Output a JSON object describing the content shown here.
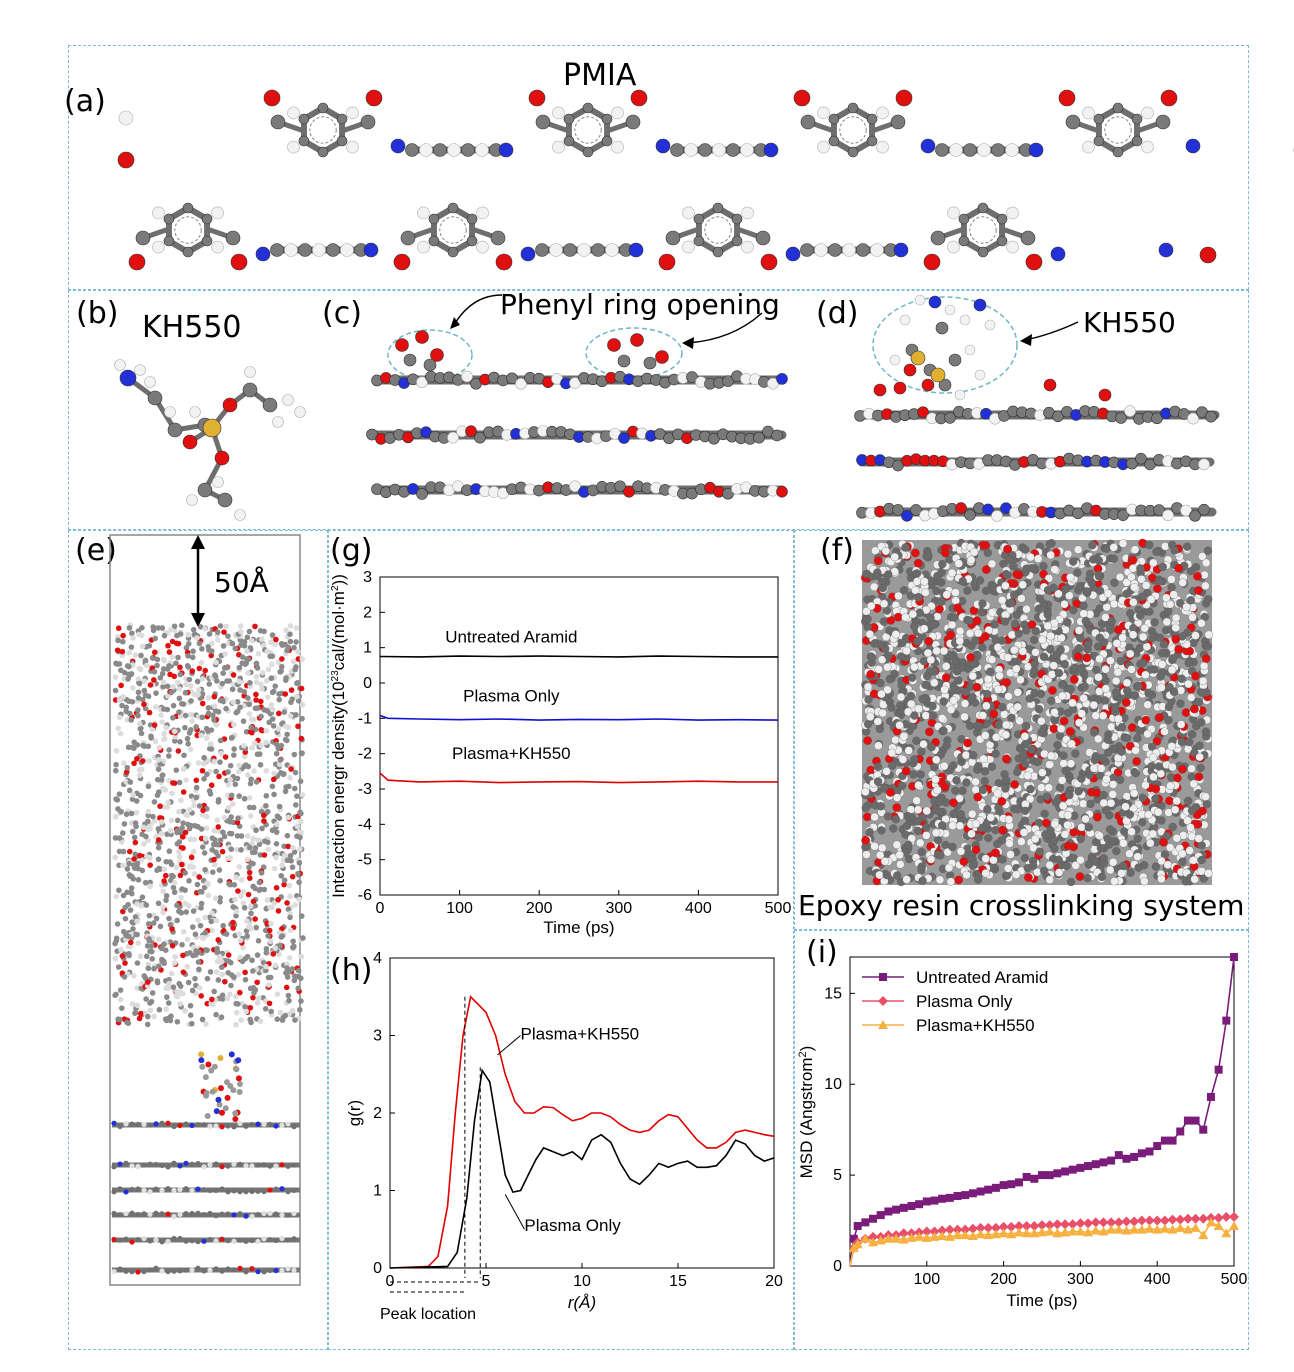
{
  "panels": {
    "a": {
      "label": "(a)",
      "title": "PMIA"
    },
    "b": {
      "label": "(b)",
      "title": "KH550"
    },
    "c": {
      "label": "(c)",
      "annotation": "Phenyl ring opening"
    },
    "d": {
      "label": "(d)",
      "annotation": "KH550"
    },
    "e": {
      "label": "(e)",
      "gap_label": "50Å"
    },
    "f": {
      "label": "(f)",
      "caption": "Epoxy resin crosslinking system"
    },
    "g": {
      "label": "(g)"
    },
    "h": {
      "label": "(h)",
      "peak_label": "Peak location"
    },
    "i": {
      "label": "(i)"
    }
  },
  "colors": {
    "carbon": "#7a7a7a",
    "oxygen": "#e01010",
    "nitrogen": "#2230d8",
    "hydrogen": "#f2f2f2",
    "silicon": "#e0b030",
    "frame": "#7fbcd2"
  },
  "chart_data": [
    {
      "id": "g",
      "type": "line",
      "xlabel": "Time (ps)",
      "ylabel": "Interaction energr density(10",
      "ylabel_sup": "23",
      "ylabel_rest": "cal/(mol·m",
      "ylabel_sup2": "2",
      "ylabel_end": "))",
      "xlim": [
        0,
        500
      ],
      "ylim": [
        -6,
        3
      ],
      "xticks": [
        0,
        100,
        200,
        300,
        400,
        500
      ],
      "yticks": [
        3,
        2,
        1,
        0,
        -1,
        -2,
        -3,
        -4,
        -5,
        -6
      ],
      "series": [
        {
          "name": "Untreated Aramid",
          "color": "#000000",
          "x": [
            0,
            50,
            100,
            150,
            200,
            250,
            300,
            350,
            400,
            450,
            500
          ],
          "values": [
            0.75,
            0.74,
            0.76,
            0.75,
            0.76,
            0.75,
            0.74,
            0.76,
            0.75,
            0.74,
            0.74
          ]
        },
        {
          "name": "Plasma Only",
          "color": "#1010d0",
          "x": [
            0,
            10,
            50,
            100,
            150,
            200,
            250,
            300,
            350,
            400,
            450,
            500
          ],
          "values": [
            -0.92,
            -1.0,
            -1.02,
            -1.04,
            -1.02,
            -1.05,
            -1.03,
            -1.04,
            -1.02,
            -1.05,
            -1.04,
            -1.05
          ]
        },
        {
          "name": "Plasma+KH550",
          "color": "#e00000",
          "x": [
            0,
            10,
            50,
            100,
            150,
            200,
            250,
            300,
            350,
            400,
            450,
            500
          ],
          "values": [
            -2.55,
            -2.75,
            -2.8,
            -2.78,
            -2.82,
            -2.8,
            -2.79,
            -2.82,
            -2.8,
            -2.78,
            -2.8,
            -2.8
          ]
        }
      ]
    },
    {
      "id": "h",
      "type": "line",
      "xlabel": "r(Å)",
      "ylabel": "g(r)",
      "xlim": [
        0,
        20
      ],
      "ylim": [
        0,
        4
      ],
      "xticks": [
        0,
        5,
        10,
        15,
        20
      ],
      "yticks": [
        0,
        1,
        2,
        3,
        4
      ],
      "series": [
        {
          "name": "Plasma+KH550",
          "color": "#e00000",
          "x": [
            0,
            2.0,
            2.5,
            3.0,
            3.4,
            3.8,
            4.2,
            4.6,
            5.0,
            5.5,
            6.0,
            6.5,
            7.0,
            7.5,
            8.0,
            8.5,
            9.0,
            9.5,
            10.0,
            10.5,
            11.0,
            11.5,
            12.0,
            12.5,
            13.0,
            13.5,
            14.0,
            14.5,
            15.0,
            15.5,
            16.0,
            16.5,
            17.0,
            17.5,
            18.0,
            18.5,
            19.0,
            19.5,
            20.0
          ],
          "values": [
            0,
            0.02,
            0.15,
            0.8,
            2.0,
            3.0,
            3.5,
            3.4,
            3.3,
            3.0,
            2.5,
            2.15,
            2.0,
            2.0,
            2.08,
            2.07,
            1.98,
            1.9,
            1.93,
            2.0,
            2.0,
            1.95,
            1.85,
            1.78,
            1.75,
            1.78,
            1.9,
            1.98,
            1.95,
            1.8,
            1.65,
            1.55,
            1.55,
            1.62,
            1.75,
            1.78,
            1.75,
            1.72,
            1.7
          ]
        },
        {
          "name": "Plasma Only",
          "color": "#000000",
          "x": [
            0,
            3.0,
            3.5,
            4.0,
            4.4,
            4.8,
            5.2,
            5.6,
            6.0,
            6.4,
            6.8,
            7.2,
            7.6,
            8.0,
            8.5,
            9.0,
            9.5,
            10.0,
            10.5,
            11.0,
            11.5,
            12.0,
            12.5,
            13.0,
            13.5,
            14.0,
            14.5,
            15.0,
            15.5,
            16.0,
            16.5,
            17.0,
            17.5,
            18.0,
            18.5,
            19.0,
            19.5,
            20.0
          ],
          "values": [
            0,
            0.02,
            0.2,
            0.9,
            1.9,
            2.55,
            2.4,
            1.8,
            1.2,
            0.98,
            1.0,
            1.2,
            1.4,
            1.55,
            1.5,
            1.45,
            1.5,
            1.4,
            1.65,
            1.72,
            1.62,
            1.35,
            1.15,
            1.08,
            1.2,
            1.35,
            1.3,
            1.35,
            1.38,
            1.3,
            1.3,
            1.32,
            1.45,
            1.65,
            1.6,
            1.45,
            1.38,
            1.42
          ]
        }
      ],
      "annotations": [
        {
          "text": "Plasma+KH550",
          "x": 6.8,
          "y": 2.95
        },
        {
          "text": "Plasma Only",
          "x": 7.0,
          "y": 0.48
        }
      ],
      "peak_lines_x": [
        3.9,
        4.7
      ]
    },
    {
      "id": "i",
      "type": "line",
      "xlabel": "Time (ps)",
      "ylabel": "MSD (Angstrom",
      "ylabel_sup": "2",
      "ylabel_end": ")",
      "xlim": [
        0,
        500
      ],
      "ylim": [
        0,
        17
      ],
      "xticks": [
        100,
        200,
        300,
        400,
        500
      ],
      "yticks": [
        0,
        5,
        10,
        15
      ],
      "series": [
        {
          "name": "Untreated Aramid",
          "color": "#7a1d7a",
          "marker": "square",
          "x": [
            0,
            5,
            10,
            20,
            30,
            40,
            50,
            60,
            70,
            80,
            90,
            100,
            110,
            120,
            130,
            140,
            150,
            160,
            170,
            180,
            190,
            200,
            210,
            220,
            230,
            240,
            250,
            260,
            270,
            280,
            290,
            300,
            310,
            320,
            330,
            340,
            350,
            360,
            370,
            380,
            390,
            400,
            410,
            420,
            430,
            440,
            450,
            460,
            470,
            480,
            490,
            500
          ],
          "values": [
            0,
            1.5,
            2.2,
            2.4,
            2.6,
            2.8,
            3.0,
            3.1,
            3.2,
            3.3,
            3.4,
            3.55,
            3.6,
            3.7,
            3.75,
            3.85,
            3.9,
            4.0,
            4.1,
            4.2,
            4.3,
            4.45,
            4.5,
            4.6,
            4.9,
            4.8,
            5.0,
            5.0,
            5.1,
            5.2,
            5.3,
            5.4,
            5.5,
            5.6,
            5.7,
            5.8,
            6.1,
            5.9,
            6.0,
            6.2,
            6.3,
            6.6,
            6.9,
            6.9,
            7.4,
            8.0,
            8.0,
            7.5,
            9.3,
            10.8,
            13.5,
            17.0
          ]
        },
        {
          "name": "Plasma Only",
          "color": "#e8506a",
          "marker": "diamond",
          "x": [
            0,
            5,
            10,
            20,
            30,
            40,
            50,
            60,
            70,
            80,
            90,
            100,
            110,
            120,
            130,
            140,
            150,
            160,
            170,
            180,
            190,
            200,
            210,
            220,
            230,
            240,
            250,
            260,
            270,
            280,
            290,
            300,
            310,
            320,
            330,
            340,
            350,
            360,
            370,
            380,
            390,
            400,
            410,
            420,
            430,
            440,
            450,
            460,
            470,
            480,
            490,
            500
          ],
          "values": [
            0,
            1.0,
            1.3,
            1.5,
            1.6,
            1.6,
            1.7,
            1.7,
            1.8,
            1.8,
            1.85,
            1.9,
            1.9,
            1.95,
            2.0,
            2.0,
            2.0,
            2.05,
            2.1,
            2.1,
            2.1,
            2.15,
            2.15,
            2.2,
            2.2,
            2.2,
            2.25,
            2.25,
            2.3,
            2.3,
            2.3,
            2.35,
            2.35,
            2.4,
            2.4,
            2.4,
            2.4,
            2.45,
            2.45,
            2.5,
            2.5,
            2.5,
            2.5,
            2.55,
            2.55,
            2.6,
            2.6,
            2.6,
            2.65,
            2.65,
            2.7,
            2.7
          ]
        },
        {
          "name": "Plasma+KH550",
          "color": "#f5b040",
          "marker": "triangle",
          "x": [
            0,
            5,
            10,
            20,
            30,
            40,
            50,
            60,
            70,
            80,
            90,
            100,
            110,
            120,
            130,
            140,
            150,
            160,
            170,
            180,
            190,
            200,
            210,
            220,
            230,
            240,
            250,
            260,
            270,
            280,
            290,
            300,
            310,
            320,
            330,
            340,
            350,
            360,
            370,
            380,
            390,
            400,
            410,
            420,
            430,
            440,
            450,
            460,
            470,
            480,
            490,
            500
          ],
          "values": [
            0,
            1.0,
            1.2,
            1.5,
            1.3,
            1.4,
            1.5,
            1.5,
            1.45,
            1.55,
            1.6,
            1.55,
            1.6,
            1.65,
            1.6,
            1.7,
            1.7,
            1.65,
            1.75,
            1.7,
            1.75,
            1.8,
            1.75,
            1.85,
            1.8,
            1.8,
            1.85,
            1.9,
            1.8,
            1.85,
            1.9,
            1.9,
            1.85,
            1.95,
            1.9,
            2.0,
            2.0,
            1.95,
            2.0,
            2.0,
            2.05,
            2.0,
            2.05,
            2.0,
            2.1,
            2.0,
            2.1,
            1.7,
            2.4,
            2.2,
            1.8,
            2.2
          ]
        }
      ]
    }
  ]
}
